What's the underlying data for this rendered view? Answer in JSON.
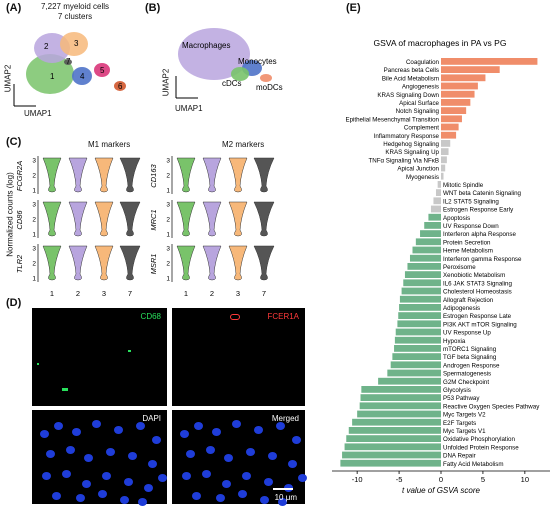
{
  "panels": {
    "A": {
      "letter": "(A)",
      "title_line1": "7,227 myeloid cells",
      "title_line2": "7 clusters",
      "xlabel": "UMAP1",
      "ylabel": "UMAP2",
      "cluster_labels": [
        "1",
        "2",
        "3",
        "4",
        "5",
        "6",
        "7"
      ]
    },
    "B": {
      "letter": "(B)",
      "labels": [
        "Macrophages",
        "Monocytes",
        "cDCs",
        "moDCs"
      ],
      "ylabel": "UMAP2",
      "xlabel": "UMAP1"
    },
    "C": {
      "letter": "(C)",
      "m1_title": "M1 markers",
      "m2_title": "M2 markers",
      "ylabel": "Normalized counts (log)",
      "m1_genes": [
        "FCGR2A",
        "CD86",
        "TLR2"
      ],
      "m2_genes": [
        "CD163",
        "MRC1",
        "MSR1"
      ],
      "clusters": [
        "1",
        "2",
        "3",
        "7"
      ],
      "yticks": [
        "3",
        "2",
        "1"
      ]
    },
    "D": {
      "letter": "(D)",
      "labels": [
        "CD68",
        "FCER1A",
        "DAPI",
        "Merged"
      ],
      "scalebar": "10 μm"
    },
    "E": {
      "letter": "(E)"
    }
  },
  "colors": {
    "cluster1": "#79c36a",
    "cluster2": "#b8a5de",
    "cluster3": "#f7b87a",
    "cluster7": "#555555",
    "cluster4": "#4f73c9",
    "cluster5": "#d9367a",
    "cluster6": "#2b2b2b",
    "pos_bar": "#f08d6a",
    "neutral_bar": "#c8c8c8",
    "neg_bar": "#6fb38a",
    "micro_green": "#28e05c",
    "micro_red": "#ff3a3a",
    "micro_blue": "#1f3dd9"
  },
  "chart_data": {
    "type": "bar",
    "orientation": "horizontal",
    "title": "GSVA of macrophages in PA vs PG",
    "xlabel": "t value of GSVA score",
    "xlim": [
      -13,
      13
    ],
    "xticks": [
      -10,
      -5,
      0,
      5,
      10
    ],
    "categories": [
      "Coagulation",
      "Pancreas beta Cells",
      "Bile Acid Metabolism",
      "Angiogenesis",
      "KRAS Signaling Down",
      "Apical Surface",
      "Notch Signaling",
      "Epithelial Mesenchymal Transition",
      "Complement",
      "Inflammatory Response",
      "Hedgehog Signaling",
      "KRAS Signaling Up",
      "TNFα Signaling Via NFκB",
      "Apical Junction",
      "Myogenesis",
      "Mitotic Spindle",
      "WNT beta Catenin Signaling",
      "IL2 STAT5 Signaling",
      "Estrogen Response Early",
      "Apoptosis",
      "UV Response Down",
      "Interferon alpha Response",
      "Protein Secretion",
      "Heme Metabolism",
      "Interferon gamma Response",
      "Peroxisome",
      "Xenobiotic Metabolism",
      "IL6 JAK STAT3 Signaling",
      "Cholesterol Homeostasis",
      "Allograft Rejection",
      "Adipogenesis",
      "Estrogen Response Late",
      "PI3K AKT mTOR Signaling",
      "UV Response Up",
      "Hypoxia",
      "mTORC1 Signaling",
      "TGF beta Signaling",
      "Androgen Response",
      "Spermatogenesis",
      "G2M Checkpoint",
      "Glycolysis",
      "P53 Pathway",
      "Reactive Oxygen Species Pathway",
      "Myc Targets V2",
      "E2F Targets",
      "Myc Targets V1",
      "Oxidative Phosphorylation",
      "Unfolded Protein Response",
      "DNA Repair",
      "Fatty Acid Metabolism"
    ],
    "values": [
      11.5,
      7.0,
      5.3,
      4.4,
      4.0,
      3.5,
      3.0,
      2.5,
      2.1,
      1.8,
      1.1,
      0.9,
      0.7,
      0.5,
      0.3,
      -0.4,
      -0.6,
      -0.9,
      -1.2,
      -1.5,
      -2.0,
      -2.5,
      -3.0,
      -3.4,
      -3.7,
      -4.0,
      -4.3,
      -4.5,
      -4.7,
      -4.9,
      -5.0,
      -5.1,
      -5.2,
      -5.4,
      -5.5,
      -5.6,
      -5.8,
      -6.0,
      -6.4,
      -7.5,
      -9.5,
      -9.6,
      -9.7,
      -10.0,
      -10.6,
      -11.0,
      -11.3,
      -11.5,
      -11.8,
      -12.0
    ]
  }
}
